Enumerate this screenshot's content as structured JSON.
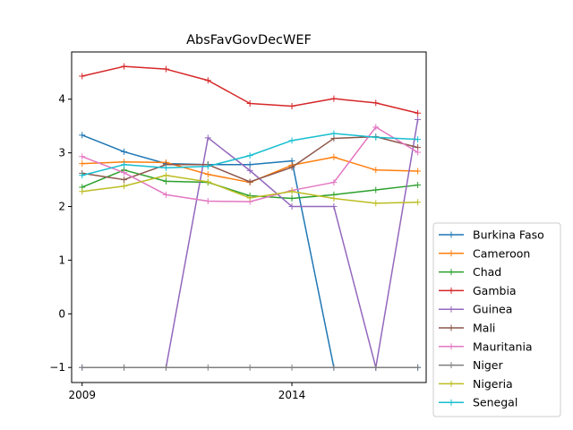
{
  "chart_data": {
    "type": "line",
    "title": "AbsFavGovDecWEF",
    "xlabel": "",
    "ylabel": "",
    "x": [
      2009,
      2010,
      2011,
      2012,
      2013,
      2014,
      2015,
      2016,
      2017
    ],
    "x_tick_labels": [
      "2009",
      "2014"
    ],
    "x_ticks": [
      2009,
      2014
    ],
    "xlim": [
      2008.75,
      2017.2
    ],
    "y_ticks": [
      -1,
      0,
      1,
      2,
      3,
      4
    ],
    "y_tick_labels": [
      "−1",
      "0",
      "1",
      "2",
      "3",
      "4"
    ],
    "ylim": [
      -1.28,
      4.88
    ],
    "grid": false,
    "legend_placement": "outside-right-bottom",
    "series": [
      {
        "name": "Burkina Faso",
        "color": "#1f77b4",
        "values": [
          3.33,
          3.02,
          2.8,
          2.78,
          2.78,
          2.85,
          -1,
          -1,
          -1
        ]
      },
      {
        "name": "Cameroon",
        "color": "#ff7f0e",
        "values": [
          2.8,
          2.83,
          2.82,
          2.6,
          2.45,
          2.77,
          2.92,
          2.68,
          2.66
        ]
      },
      {
        "name": "Chad",
        "color": "#2ca02c",
        "values": [
          2.36,
          2.68,
          2.47,
          2.45,
          2.2,
          2.15,
          2.22,
          2.31,
          2.4
        ]
      },
      {
        "name": "Gambia",
        "color": "#d62728",
        "values": [
          4.43,
          4.61,
          4.56,
          4.35,
          3.92,
          3.87,
          4.01,
          3.93,
          3.74
        ]
      },
      {
        "name": "Guinea",
        "color": "#9467bd",
        "values": [
          -1,
          -1,
          -1,
          3.28,
          2.67,
          2.0,
          2.0,
          -1,
          3.62
        ]
      },
      {
        "name": "Mali",
        "color": "#8c564b",
        "values": [
          2.62,
          2.5,
          2.78,
          2.78,
          2.46,
          2.73,
          3.27,
          3.3,
          3.1
        ]
      },
      {
        "name": "Mauritania",
        "color": "#e377c2",
        "values": [
          2.93,
          2.63,
          2.22,
          2.1,
          2.09,
          2.3,
          2.45,
          3.48,
          3.01
        ]
      },
      {
        "name": "Niger",
        "color": "#7f7f7f",
        "values": [
          -1,
          -1,
          -1,
          -1,
          -1,
          -1,
          -1,
          -1,
          -1
        ]
      },
      {
        "name": "Nigeria",
        "color": "#bcbd22",
        "values": [
          2.28,
          2.38,
          2.58,
          2.46,
          2.16,
          2.28,
          2.15,
          2.06,
          2.08
        ]
      },
      {
        "name": "Senegal",
        "color": "#17becf",
        "values": [
          2.58,
          2.78,
          2.72,
          2.75,
          2.95,
          3.23,
          3.36,
          3.29,
          3.25
        ]
      }
    ]
  }
}
